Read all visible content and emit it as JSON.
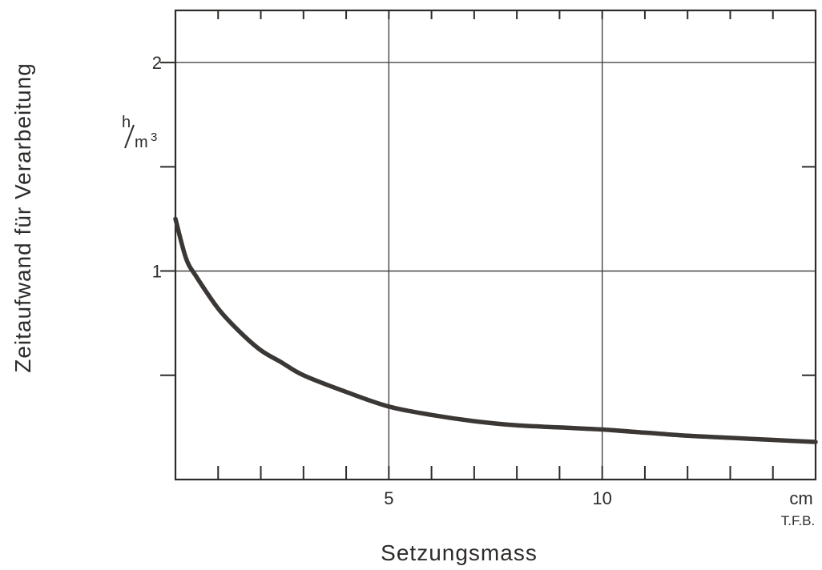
{
  "chart_data": {
    "type": "line",
    "title": "",
    "xlabel": "Setzungsmass",
    "ylabel": "Zeitaufwand für Verarbeitung",
    "x_unit": "cm",
    "y_unit": {
      "num": "h",
      "den": "m",
      "exp": "3"
    },
    "credit": "T.F.B.",
    "xlim": [
      0,
      15
    ],
    "ylim": [
      0,
      2.25
    ],
    "x_ticks": [
      5,
      10
    ],
    "x_minor_step": 1,
    "y_ticks": [
      1,
      2
    ],
    "y_minor_ticks": [
      0.5,
      1.5
    ],
    "grid": true,
    "series": [
      {
        "x": [
          0,
          0.25,
          0.5,
          1,
          1.5,
          2,
          2.5,
          3,
          4,
          5,
          6,
          7,
          8,
          9,
          10,
          11,
          12,
          13,
          14,
          15
        ],
        "y": [
          1.25,
          1.06,
          0.97,
          0.82,
          0.71,
          0.62,
          0.56,
          0.5,
          0.42,
          0.35,
          0.31,
          0.28,
          0.26,
          0.25,
          0.24,
          0.225,
          0.21,
          0.2,
          0.19,
          0.18
        ]
      }
    ]
  }
}
